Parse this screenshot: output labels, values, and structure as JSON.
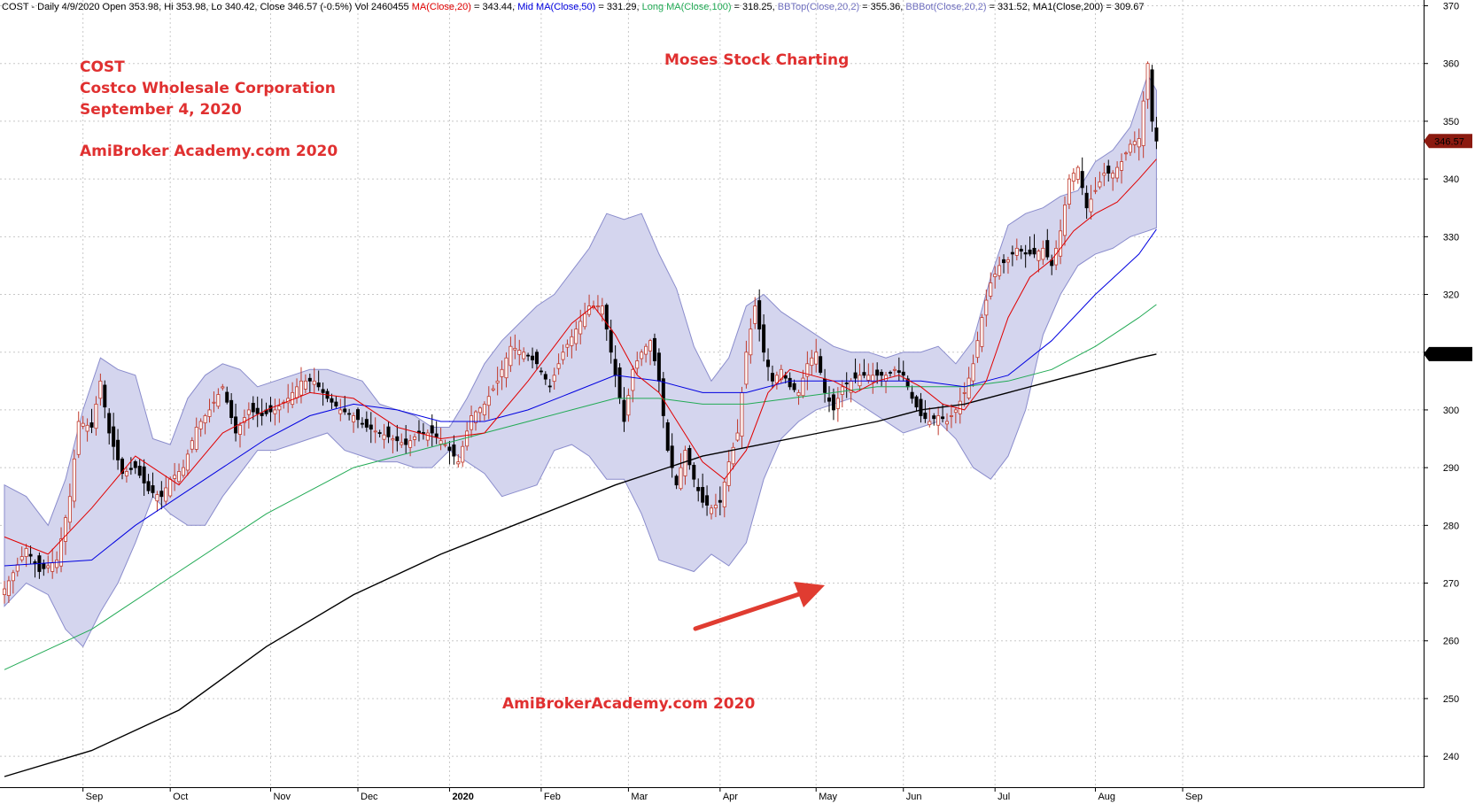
{
  "header": {
    "prefix": "COST - Daily 4/9/2020 Open 353.98, Hi 353.98, Lo 340.42, Close 346.57 (-0.5%) Vol 2460455 ",
    "items": [
      {
        "label": "MA(Close,20)",
        "value": " = 343.44, ",
        "color": "#e00000"
      },
      {
        "label": "Mid MA(Close,50)",
        "value": " = 331.29, ",
        "color": "#0000e0"
      },
      {
        "label": "Long MA(Close,100)",
        "value": " = 318.25, ",
        "color": "#22aa55"
      },
      {
        "label": "BBTop(Close,20,2)",
        "value": " = 355.36, ",
        "color": "#7070c0"
      },
      {
        "label": "BBBot(Close,20,2)",
        "value": " = 331.52, ",
        "color": "#7070c0"
      },
      {
        "label": "MA1(Close,200)",
        "value": " = 309.67",
        "color": "#000000"
      }
    ]
  },
  "annotations": {
    "ticker": "COST",
    "company": "Costco Wholesale Corporation",
    "date": "September 4, 2020",
    "site_left": "AmiBroker Academy.com 2020",
    "title_center": "Moses Stock Charting",
    "site_bottom": "AmiBrokerAcademy.com  2020"
  },
  "colors": {
    "annotation": "#e03030",
    "band_fill": "#d4d5ee",
    "band_edge": "#8a8ccc",
    "ma20": "#e00000",
    "ma50": "#0000e0",
    "ma100": "#22aa55",
    "ma200": "#000000",
    "candle_up": "#c0392b",
    "candle_down": "#000000",
    "arrow": "#e03c31"
  },
  "price_labels": {
    "close": "346.57",
    "ma200": "309.669"
  },
  "chart_data": {
    "type": "candlestick",
    "y_ticks": [
      240,
      250,
      260,
      270,
      280,
      290,
      300,
      310,
      320,
      330,
      340,
      350,
      360,
      370
    ],
    "ylim": [
      234.5,
      371
    ],
    "x_labels": [
      "Sep",
      "Oct",
      "Nov",
      "Dec",
      "2020",
      "Feb",
      "Mar",
      "Apr",
      "May",
      "Jun",
      "Jul",
      "Aug",
      "Sep"
    ],
    "x_label_days": [
      18,
      38,
      61,
      81,
      102,
      123,
      143,
      164,
      186,
      206,
      227,
      250,
      270
    ],
    "grid": true,
    "close_points": [
      [
        0,
        269
      ],
      [
        5,
        276
      ],
      [
        8,
        272
      ],
      [
        12,
        274
      ],
      [
        15,
        285
      ],
      [
        17,
        298
      ],
      [
        20,
        297
      ],
      [
        22,
        305
      ],
      [
        24,
        296
      ],
      [
        27,
        289
      ],
      [
        30,
        290
      ],
      [
        33,
        286
      ],
      [
        36,
        285
      ],
      [
        38,
        288
      ],
      [
        41,
        290
      ],
      [
        44,
        297
      ],
      [
        47,
        300
      ],
      [
        50,
        304
      ],
      [
        53,
        296
      ],
      [
        56,
        300
      ],
      [
        59,
        299
      ],
      [
        62,
        300
      ],
      [
        65,
        302
      ],
      [
        68,
        305
      ],
      [
        71,
        305
      ],
      [
        74,
        302
      ],
      [
        77,
        300
      ],
      [
        80,
        299
      ],
      [
        83,
        297
      ],
      [
        86,
        296
      ],
      [
        89,
        295
      ],
      [
        92,
        294
      ],
      [
        95,
        296
      ],
      [
        98,
        296
      ],
      [
        101,
        294
      ],
      [
        104,
        291
      ],
      [
        107,
        299
      ],
      [
        110,
        301
      ],
      [
        113,
        305
      ],
      [
        116,
        311
      ],
      [
        119,
        310
      ],
      [
        122,
        308
      ],
      [
        125,
        304
      ],
      [
        128,
        310
      ],
      [
        131,
        314
      ],
      [
        134,
        318
      ],
      [
        137,
        318
      ],
      [
        140,
        306
      ],
      [
        142,
        298
      ],
      [
        144,
        307
      ],
      [
        146,
        310
      ],
      [
        148,
        312
      ],
      [
        150,
        305
      ],
      [
        152,
        293
      ],
      [
        154,
        287
      ],
      [
        156,
        293
      ],
      [
        158,
        288
      ],
      [
        160,
        284
      ],
      [
        162,
        283
      ],
      [
        164,
        284
      ],
      [
        166,
        291
      ],
      [
        168,
        296
      ],
      [
        170,
        310
      ],
      [
        172,
        318
      ],
      [
        174,
        310
      ],
      [
        176,
        305
      ],
      [
        178,
        307
      ],
      [
        180,
        304
      ],
      [
        182,
        303
      ],
      [
        184,
        308
      ],
      [
        186,
        310
      ],
      [
        188,
        303
      ],
      [
        190,
        300
      ],
      [
        192,
        304
      ],
      [
        194,
        305
      ],
      [
        196,
        306
      ],
      [
        198,
        306
      ],
      [
        200,
        306
      ],
      [
        202,
        306
      ],
      [
        204,
        307
      ],
      [
        206,
        306
      ],
      [
        208,
        302
      ],
      [
        210,
        299
      ],
      [
        212,
        298
      ],
      [
        214,
        299
      ],
      [
        216,
        298
      ],
      [
        218,
        300
      ],
      [
        220,
        303
      ],
      [
        222,
        308
      ],
      [
        224,
        316
      ],
      [
        226,
        322
      ],
      [
        228,
        325
      ],
      [
        230,
        326
      ],
      [
        232,
        328
      ],
      [
        234,
        327
      ],
      [
        236,
        327
      ],
      [
        238,
        328
      ],
      [
        240,
        325
      ],
      [
        242,
        331
      ],
      [
        244,
        340
      ],
      [
        246,
        342
      ],
      [
        248,
        335
      ],
      [
        250,
        338
      ],
      [
        252,
        341
      ],
      [
        254,
        341
      ],
      [
        256,
        343
      ],
      [
        258,
        346
      ],
      [
        260,
        347
      ],
      [
        262,
        360
      ],
      [
        263,
        350
      ],
      [
        264,
        346.57
      ]
    ],
    "ma20": [
      [
        0,
        278
      ],
      [
        10,
        275
      ],
      [
        20,
        283
      ],
      [
        30,
        292
      ],
      [
        40,
        287
      ],
      [
        50,
        296
      ],
      [
        60,
        300
      ],
      [
        70,
        303
      ],
      [
        80,
        302
      ],
      [
        90,
        297
      ],
      [
        100,
        295
      ],
      [
        110,
        296
      ],
      [
        120,
        305
      ],
      [
        130,
        315
      ],
      [
        135,
        318
      ],
      [
        140,
        313
      ],
      [
        145,
        306
      ],
      [
        150,
        303
      ],
      [
        155,
        297
      ],
      [
        160,
        291
      ],
      [
        165,
        288
      ],
      [
        170,
        293
      ],
      [
        175,
        303
      ],
      [
        180,
        307
      ],
      [
        185,
        306
      ],
      [
        190,
        305
      ],
      [
        195,
        303
      ],
      [
        200,
        305
      ],
      [
        205,
        306
      ],
      [
        210,
        304
      ],
      [
        215,
        301
      ],
      [
        220,
        300
      ],
      [
        225,
        305
      ],
      [
        230,
        316
      ],
      [
        235,
        323
      ],
      [
        240,
        326
      ],
      [
        245,
        331
      ],
      [
        250,
        334
      ],
      [
        255,
        336
      ],
      [
        260,
        340
      ],
      [
        264,
        343.44
      ]
    ],
    "ma50": [
      [
        0,
        273
      ],
      [
        20,
        274
      ],
      [
        30,
        280
      ],
      [
        40,
        285
      ],
      [
        50,
        290
      ],
      [
        60,
        295
      ],
      [
        70,
        299
      ],
      [
        80,
        301
      ],
      [
        90,
        300
      ],
      [
        100,
        298
      ],
      [
        110,
        298
      ],
      [
        120,
        300
      ],
      [
        130,
        303
      ],
      [
        140,
        306
      ],
      [
        150,
        305
      ],
      [
        160,
        303
      ],
      [
        170,
        303
      ],
      [
        180,
        305
      ],
      [
        190,
        305
      ],
      [
        200,
        305
      ],
      [
        210,
        305
      ],
      [
        220,
        304
      ],
      [
        230,
        306
      ],
      [
        240,
        312
      ],
      [
        250,
        320
      ],
      [
        260,
        327
      ],
      [
        264,
        331.29
      ]
    ],
    "ma100": [
      [
        0,
        255
      ],
      [
        20,
        262
      ],
      [
        40,
        272
      ],
      [
        60,
        282
      ],
      [
        70,
        286
      ],
      [
        80,
        290
      ],
      [
        90,
        292
      ],
      [
        100,
        294
      ],
      [
        110,
        296
      ],
      [
        120,
        298
      ],
      [
        130,
        300
      ],
      [
        140,
        302
      ],
      [
        150,
        302
      ],
      [
        160,
        301
      ],
      [
        170,
        301
      ],
      [
        180,
        302
      ],
      [
        190,
        303
      ],
      [
        200,
        304
      ],
      [
        210,
        304
      ],
      [
        220,
        304
      ],
      [
        230,
        305
      ],
      [
        240,
        307
      ],
      [
        250,
        311
      ],
      [
        260,
        316
      ],
      [
        264,
        318.25
      ]
    ],
    "ma200": [
      [
        0,
        236.5
      ],
      [
        20,
        241
      ],
      [
        40,
        248
      ],
      [
        60,
        259
      ],
      [
        80,
        268
      ],
      [
        100,
        275
      ],
      [
        120,
        281
      ],
      [
        140,
        287
      ],
      [
        160,
        292
      ],
      [
        180,
        295
      ],
      [
        200,
        298
      ],
      [
        210,
        300
      ],
      [
        220,
        301
      ],
      [
        230,
        303
      ],
      [
        240,
        305
      ],
      [
        250,
        307
      ],
      [
        260,
        309
      ],
      [
        264,
        309.67
      ]
    ],
    "bb_upper": [
      [
        0,
        287
      ],
      [
        5,
        285
      ],
      [
        10,
        280
      ],
      [
        14,
        288
      ],
      [
        18,
        300
      ],
      [
        22,
        309
      ],
      [
        26,
        307
      ],
      [
        30,
        306
      ],
      [
        34,
        295
      ],
      [
        38,
        294
      ],
      [
        42,
        302
      ],
      [
        46,
        306
      ],
      [
        50,
        308
      ],
      [
        54,
        307
      ],
      [
        58,
        304
      ],
      [
        62,
        305
      ],
      [
        66,
        306
      ],
      [
        70,
        307
      ],
      [
        74,
        307
      ],
      [
        78,
        306
      ],
      [
        82,
        305
      ],
      [
        86,
        301
      ],
      [
        90,
        300
      ],
      [
        94,
        299
      ],
      [
        98,
        297
      ],
      [
        102,
        297
      ],
      [
        106,
        302
      ],
      [
        110,
        308
      ],
      [
        114,
        312
      ],
      [
        118,
        315
      ],
      [
        122,
        318
      ],
      [
        126,
        320
      ],
      [
        130,
        324
      ],
      [
        134,
        328
      ],
      [
        138,
        334
      ],
      [
        142,
        333
      ],
      [
        146,
        334
      ],
      [
        150,
        327
      ],
      [
        154,
        321
      ],
      [
        158,
        311
      ],
      [
        162,
        305
      ],
      [
        166,
        309
      ],
      [
        170,
        318
      ],
      [
        174,
        320
      ],
      [
        178,
        317
      ],
      [
        182,
        315
      ],
      [
        186,
        313
      ],
      [
        190,
        311
      ],
      [
        194,
        310
      ],
      [
        198,
        310
      ],
      [
        202,
        309
      ],
      [
        206,
        310
      ],
      [
        210,
        310
      ],
      [
        214,
        311
      ],
      [
        218,
        308
      ],
      [
        222,
        312
      ],
      [
        226,
        323
      ],
      [
        230,
        332
      ],
      [
        234,
        334
      ],
      [
        238,
        335
      ],
      [
        242,
        337
      ],
      [
        246,
        338
      ],
      [
        250,
        343
      ],
      [
        254,
        345
      ],
      [
        258,
        349
      ],
      [
        262,
        358
      ],
      [
        264,
        355.36
      ]
    ],
    "bb_lower": [
      [
        0,
        266
      ],
      [
        5,
        270
      ],
      [
        10,
        268
      ],
      [
        14,
        262
      ],
      [
        18,
        259
      ],
      [
        22,
        265
      ],
      [
        26,
        270
      ],
      [
        30,
        277
      ],
      [
        34,
        285
      ],
      [
        38,
        282
      ],
      [
        42,
        280
      ],
      [
        46,
        280
      ],
      [
        50,
        285
      ],
      [
        54,
        289
      ],
      [
        58,
        293
      ],
      [
        62,
        293
      ],
      [
        66,
        294
      ],
      [
        70,
        295
      ],
      [
        74,
        296
      ],
      [
        78,
        293
      ],
      [
        82,
        292
      ],
      [
        86,
        291
      ],
      [
        90,
        291
      ],
      [
        94,
        290
      ],
      [
        98,
        290
      ],
      [
        102,
        293
      ],
      [
        106,
        291
      ],
      [
        110,
        289
      ],
      [
        114,
        285
      ],
      [
        118,
        286
      ],
      [
        122,
        287
      ],
      [
        126,
        293
      ],
      [
        130,
        294
      ],
      [
        134,
        292
      ],
      [
        138,
        288
      ],
      [
        142,
        288
      ],
      [
        146,
        282
      ],
      [
        150,
        274
      ],
      [
        154,
        273
      ],
      [
        158,
        272
      ],
      [
        162,
        275
      ],
      [
        166,
        273
      ],
      [
        170,
        277
      ],
      [
        174,
        288
      ],
      [
        178,
        295
      ],
      [
        182,
        298
      ],
      [
        186,
        300
      ],
      [
        190,
        301
      ],
      [
        194,
        302
      ],
      [
        198,
        300
      ],
      [
        202,
        298
      ],
      [
        206,
        296
      ],
      [
        210,
        297
      ],
      [
        214,
        298
      ],
      [
        218,
        295
      ],
      [
        222,
        290
      ],
      [
        226,
        288
      ],
      [
        230,
        292
      ],
      [
        234,
        300
      ],
      [
        238,
        313
      ],
      [
        242,
        320
      ],
      [
        246,
        325
      ],
      [
        250,
        327
      ],
      [
        254,
        328
      ],
      [
        258,
        330
      ],
      [
        262,
        331
      ],
      [
        264,
        331.52
      ]
    ]
  }
}
